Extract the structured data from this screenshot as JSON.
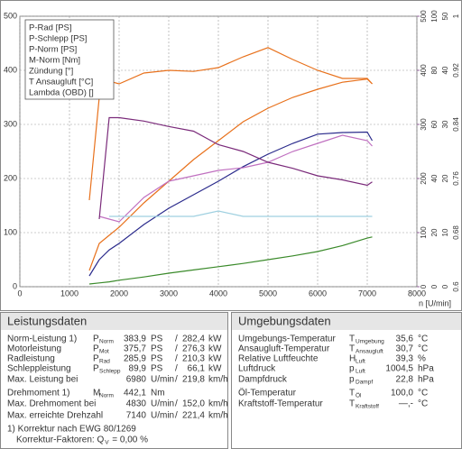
{
  "chart_data": {
    "type": "line",
    "x_label": "n [U/min]",
    "x": [
      1400,
      1600,
      1800,
      2000,
      2500,
      3000,
      3500,
      4000,
      4500,
      5000,
      5500,
      6000,
      6500,
      7000,
      7100
    ],
    "xlim": [
      0,
      8000
    ],
    "xticks": [
      0,
      1000,
      2000,
      3000,
      4000,
      5000,
      6000,
      7000,
      8000
    ],
    "ylim": [
      0,
      500
    ],
    "yticks": [
      0,
      100,
      200,
      300,
      400,
      500
    ],
    "y2lim": [
      0,
      500
    ],
    "y2ticks": [
      0,
      100,
      200,
      300,
      400,
      500
    ],
    "y3lim": [
      0,
      100
    ],
    "y3ticks": [
      0,
      20,
      40,
      60,
      80,
      100
    ],
    "y4lim": [
      0,
      50
    ],
    "y4ticks": [
      0,
      10,
      20,
      30,
      40,
      50
    ],
    "y5lim": [
      0.6,
      1
    ],
    "y5ticks": [
      0.6,
      0.68,
      0.76,
      0.84,
      0.92,
      1
    ],
    "grid": true,
    "legend": "top-left",
    "series": [
      {
        "name": "P-Rad [PS]",
        "color": "#2b2b8c",
        "axis": "y",
        "values": [
          20,
          50,
          68,
          80,
          115,
          145,
          170,
          195,
          222,
          245,
          265,
          282,
          285,
          285.9,
          270
        ]
      },
      {
        "name": "P-Schlepp [PS]",
        "color": "#3a8a2a",
        "axis": "y",
        "values": [
          5,
          7,
          9,
          12,
          18,
          25,
          31,
          37,
          43,
          50,
          57,
          65,
          76,
          89.9,
          92
        ]
      },
      {
        "name": "P-Norm [PS]",
        "color": "#e8711c",
        "axis": "y",
        "values": [
          30,
          80,
          95,
          110,
          155,
          195,
          235,
          270,
          305,
          330,
          350,
          365,
          378,
          383.9,
          375
        ]
      },
      {
        "name": "M-Norm [Nm]",
        "color": "#e8711c",
        "axis": "y2",
        "values": [
          160,
          350,
          380,
          375,
          395,
          400,
          398,
          405,
          425,
          442,
          420,
          400,
          385,
          385,
          375
        ]
      },
      {
        "name": "Zündung [°]",
        "color": "#c070c0",
        "axis": "y3",
        "values": [
          null,
          26,
          25,
          24,
          33,
          39,
          41,
          43,
          44,
          46,
          50,
          53,
          56,
          54,
          52
        ]
      },
      {
        "name": "T Ansaugluft [°C]",
        "color": "#9fd0e0",
        "axis": "y4",
        "values": [
          null,
          null,
          13,
          13,
          13,
          13,
          13,
          14,
          13,
          13,
          13,
          13,
          13,
          13,
          13
        ]
      },
      {
        "name": "Lambda (OBD) []",
        "color": "#7a2a7a",
        "axis": "y5",
        "values": [
          null,
          0.7,
          0.85,
          0.85,
          0.845,
          0.837,
          0.83,
          0.81,
          0.8,
          0.784,
          0.775,
          0.764,
          0.758,
          0.75,
          0.755
        ]
      }
    ]
  },
  "left_table": {
    "title": "Leistungsdaten",
    "rows": [
      {
        "label": "Norm-Leistung 1)",
        "color": "#e8711c",
        "sym": "P",
        "sub": "Norm",
        "v1": "383,9",
        "u1": "PS",
        "sep": "/",
        "v2": "282,4",
        "u2": "kW"
      },
      {
        "label": "Motorleistung",
        "color": "#e8711c",
        "sym": "P",
        "sub": "Mot",
        "v1": "375,7",
        "u1": "PS",
        "sep": "/",
        "v2": "276,3",
        "u2": "kW"
      },
      {
        "label": "Radleistung",
        "color": "#2b2b8c",
        "sym": "P",
        "sub": "Rad",
        "v1": "285,9",
        "u1": "PS",
        "sep": "/",
        "v2": "210,3",
        "u2": "kW"
      },
      {
        "label": "Schleppleistung",
        "color": "#3a8a2a",
        "sym": "P",
        "sub": "Schlepp",
        "v1": "89,9",
        "u1": "PS",
        "sep": "/",
        "v2": "66,1",
        "u2": "kW"
      },
      {
        "label": "Max. Leistung bei",
        "color": "#000000",
        "v1": "6980",
        "u1": "U/min",
        "sep": "/",
        "v2": "219,8",
        "u2": "km/h"
      },
      {
        "label": "Drehmoment 1)",
        "color": "#e8711c",
        "sym": "M",
        "sub": "Norm",
        "v1": "442,1",
        "u1": "Nm"
      },
      {
        "label": "Max. Drehmoment bei",
        "color": "#000000",
        "v1": "4830",
        "u1": "U/min",
        "sep": "/",
        "v2": "152,0",
        "u2": "km/h"
      },
      {
        "label": "Max. erreichte Drehzahl",
        "color": "#000000",
        "v1": "7140",
        "u1": "U/min",
        "sep": "/",
        "v2": "221,4",
        "u2": "km/h"
      }
    ],
    "notes": [
      {
        "text": "1) Korrektur nach EWG 80/1269"
      },
      {
        "text": "Korrektur-Faktoren: Q",
        "sub": "V",
        "rest": "=  0,00 %"
      }
    ]
  },
  "right_table": {
    "title": "Umgebungsdaten",
    "rows": [
      {
        "label": "Umgebungs-Temperatur",
        "sym": "T",
        "sub": "Umgebung",
        "v1": "35,6",
        "u1": "°C"
      },
      {
        "label": "Ansaugluft-Temperatur",
        "sym": "T",
        "sub": "Ansaugluft",
        "v1": "30,7",
        "u1": "°C"
      },
      {
        "label": "Relative Luftfeuchte",
        "sym": "H",
        "sub": "Luft",
        "v1": "39,3",
        "u1": "%"
      },
      {
        "label": "Luftdruck",
        "sym": "p",
        "sub": "Luft",
        "v1": "1004,5",
        "u1": "hPa"
      },
      {
        "label": "Dampfdruck",
        "sym": "p",
        "sub": "Dampf",
        "v1": "22,8",
        "u1": "hPa"
      },
      {
        "label": "Öl-Temperatur",
        "sym": "T",
        "sub": "Öl",
        "v1": "100,0",
        "u1": "°C"
      },
      {
        "label": "Kraftstoff-Temperatur",
        "sym": "T",
        "sub": "Kraftstoff",
        "v1": "—,-",
        "u1": "°C"
      }
    ]
  }
}
